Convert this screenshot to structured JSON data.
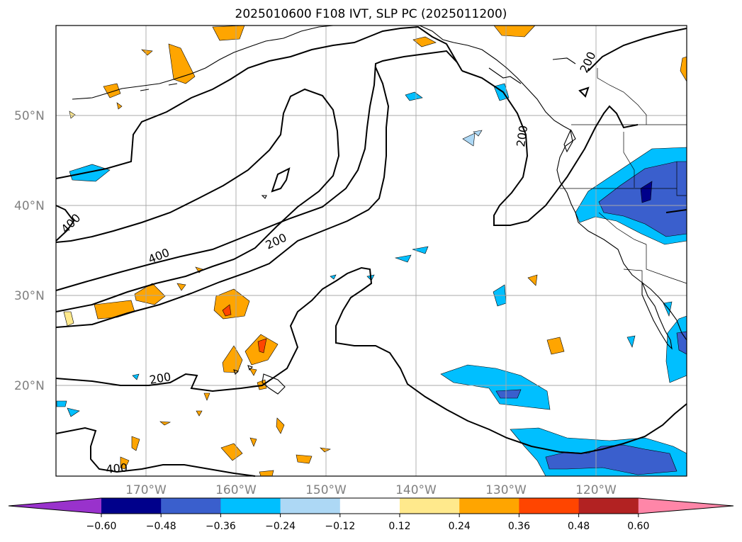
{
  "title": "2025010600 F108 IVT, SLP PC (2025011200)",
  "map": {
    "lat_range": [
      10,
      60
    ],
    "lon_range": [
      -180,
      -110
    ],
    "lat_labels": [
      "50°N",
      "40°N",
      "30°N",
      "20°N"
    ],
    "lon_labels": [
      "170°W",
      "160°W",
      "150°W",
      "140°W",
      "130°W",
      "120°W"
    ],
    "grid": true,
    "slp_contour_labels": [
      "200",
      "200",
      "200",
      "400",
      "400",
      "200",
      "400"
    ],
    "positive_color": "#ffa500",
    "negative_color": "#00bfff"
  },
  "colorbar": {
    "tick_labels": [
      "−0.60",
      "−0.48",
      "−0.36",
      "−0.24",
      "−0.12",
      "0.12",
      "0.24",
      "0.36",
      "0.48",
      "0.60"
    ],
    "colors": [
      "#9932cc",
      "#00008b",
      "#3a5fcd",
      "#00bfff",
      "#add8f5",
      "#ffffff",
      "#ffe98c",
      "#ffa500",
      "#ff4500",
      "#b22222",
      "#ff86a8"
    ],
    "extend": "both"
  }
}
